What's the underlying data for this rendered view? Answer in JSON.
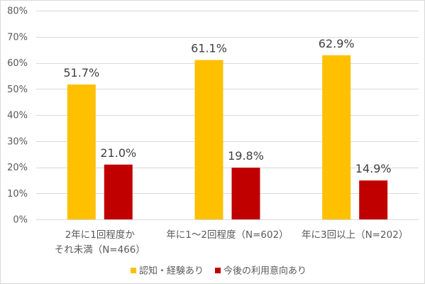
{
  "chart_data": {
    "type": "bar",
    "categories": [
      "2年に1回程度かそれ未満（N=466）",
      "年に1～2回程度（N=602）",
      "年に3回以上（N=202）"
    ],
    "series": [
      {
        "name": "認知・経験あり",
        "values": [
          51.7,
          61.1,
          62.9
        ],
        "color": "#FFC000"
      },
      {
        "name": "今後の利用意向あり",
        "values": [
          21.0,
          19.8,
          14.9
        ],
        "color": "#C00000"
      }
    ],
    "data_labels": [
      [
        "51.7%",
        "61.1%",
        "62.9%"
      ],
      [
        "21.0%",
        "19.8%",
        "14.9%"
      ]
    ],
    "ylim": [
      0,
      80
    ],
    "y_ticks": [
      0,
      10,
      20,
      30,
      40,
      50,
      60,
      70,
      80
    ],
    "y_tick_labels": [
      "0%",
      "10%",
      "20%",
      "30%",
      "40%",
      "50%",
      "60%",
      "70%",
      "80%"
    ],
    "grid": true,
    "legend": "bottom"
  }
}
